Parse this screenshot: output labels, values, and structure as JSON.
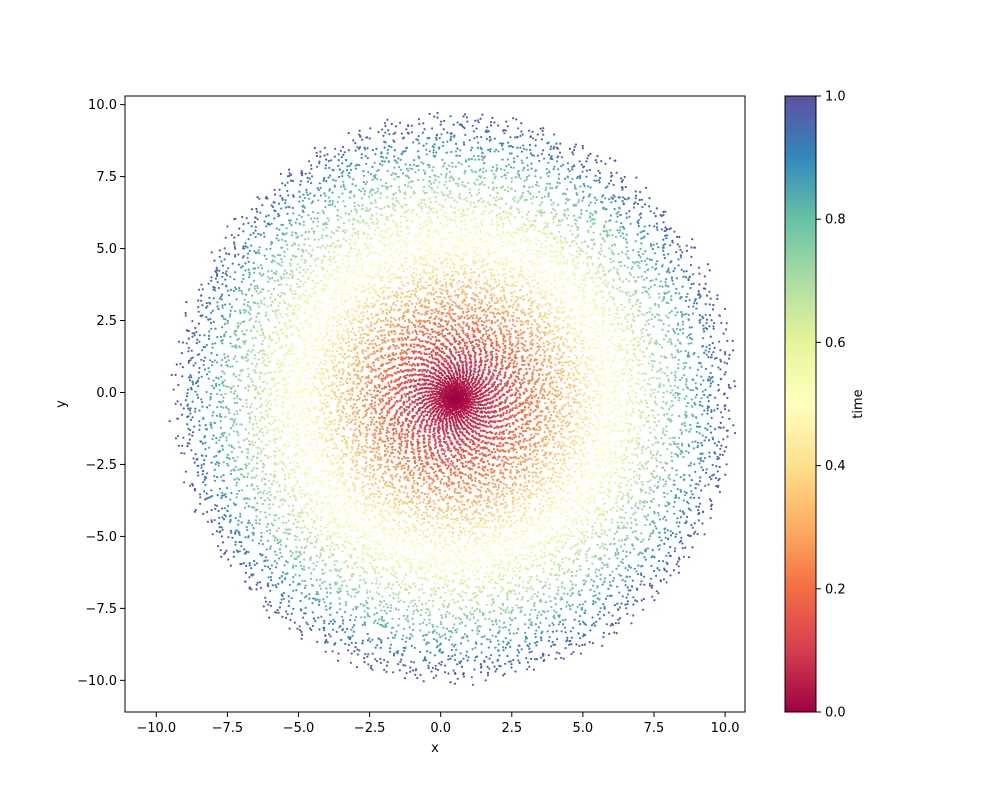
{
  "chart_data": {
    "type": "scatter",
    "title": "",
    "xlabel": "x",
    "ylabel": "y",
    "xlim": [
      -11.1,
      10.7
    ],
    "ylim": [
      -11.1,
      10.3
    ],
    "xticks": [
      -10.0,
      -7.5,
      -5.0,
      -2.5,
      0.0,
      2.5,
      5.0,
      7.5,
      10.0
    ],
    "yticks": [
      -10.0,
      -7.5,
      -5.0,
      -2.5,
      0.0,
      2.5,
      5.0,
      7.5,
      10.0
    ],
    "xtick_labels": [
      "−10.0",
      "−7.5",
      "−5.0",
      "−2.5",
      "0.0",
      "2.5",
      "5.0",
      "7.5",
      "10.0"
    ],
    "ytick_labels": [
      "−10.0",
      "−7.5",
      "−5.0",
      "−2.5",
      "0.0",
      "2.5",
      "5.0",
      "7.5",
      "10.0"
    ],
    "grid": false,
    "colormap": "Spectral",
    "color_variable": "time",
    "description_of_pattern": {
      "center": [
        0.5,
        -0.2
      ],
      "max_radius": 9.8,
      "arms": 46,
      "points_per_arm": 320,
      "rotation_turns": 0.75,
      "rotation_direction": "counter-clockwise outward",
      "radius_vs_time": "radius grows with time; time 0 at center, time 1 at outer edge"
    },
    "colorbar": {
      "label": "time",
      "range": [
        0.0,
        1.0
      ],
      "ticks": [
        0.0,
        0.2,
        0.4,
        0.6,
        0.8,
        1.0
      ],
      "tick_labels": [
        "0.0",
        "0.2",
        "0.4",
        "0.6",
        "0.8",
        "1.0"
      ],
      "stops": [
        "#9e0142",
        "#d53e4f",
        "#f46d43",
        "#fdae61",
        "#fee08b",
        "#ffffbf",
        "#e6f598",
        "#abdda4",
        "#66c2a5",
        "#3288bd",
        "#5e4fa2"
      ]
    }
  }
}
